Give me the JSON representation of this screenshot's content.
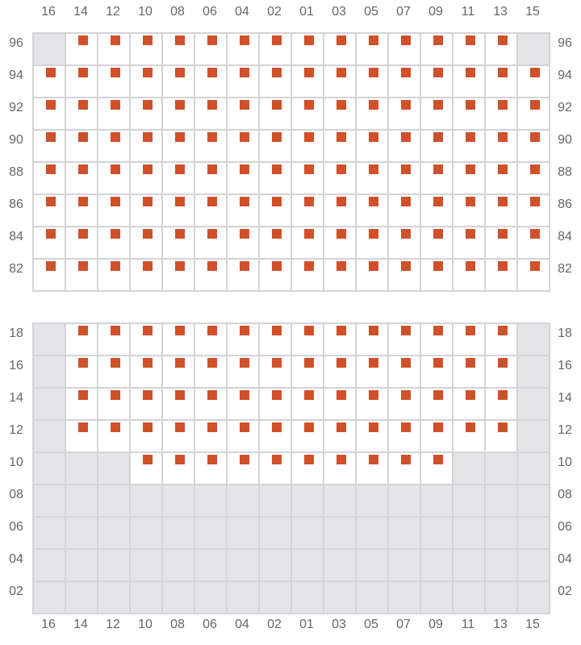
{
  "colors": {
    "seat": "#d0502a",
    "unavailable": "#e4e4e7",
    "grid": "#d4d4d8"
  },
  "columns": [
    "16",
    "14",
    "12",
    "10",
    "08",
    "06",
    "04",
    "02",
    "01",
    "03",
    "05",
    "07",
    "09",
    "11",
    "13",
    "15"
  ],
  "sections": [
    {
      "rows": [
        {
          "label": "96",
          "seats": [
            "14",
            "12",
            "10",
            "08",
            "06",
            "04",
            "02",
            "01",
            "03",
            "05",
            "07",
            "09",
            "11",
            "13"
          ],
          "unavailable": [
            "16",
            "15"
          ]
        },
        {
          "label": "94",
          "seats": [
            "16",
            "14",
            "12",
            "10",
            "08",
            "06",
            "04",
            "02",
            "01",
            "03",
            "05",
            "07",
            "09",
            "11",
            "13",
            "15"
          ],
          "unavailable": []
        },
        {
          "label": "92",
          "seats": [
            "16",
            "14",
            "12",
            "10",
            "08",
            "06",
            "04",
            "02",
            "01",
            "03",
            "05",
            "07",
            "09",
            "11",
            "13",
            "15"
          ],
          "unavailable": []
        },
        {
          "label": "90",
          "seats": [
            "16",
            "14",
            "12",
            "10",
            "08",
            "06",
            "04",
            "02",
            "01",
            "03",
            "05",
            "07",
            "09",
            "11",
            "13",
            "15"
          ],
          "unavailable": []
        },
        {
          "label": "88",
          "seats": [
            "16",
            "14",
            "12",
            "10",
            "08",
            "06",
            "04",
            "02",
            "01",
            "03",
            "05",
            "07",
            "09",
            "11",
            "13",
            "15"
          ],
          "unavailable": []
        },
        {
          "label": "86",
          "seats": [
            "16",
            "14",
            "12",
            "10",
            "08",
            "06",
            "04",
            "02",
            "01",
            "03",
            "05",
            "07",
            "09",
            "11",
            "13",
            "15"
          ],
          "unavailable": []
        },
        {
          "label": "84",
          "seats": [
            "16",
            "14",
            "12",
            "10",
            "08",
            "06",
            "04",
            "02",
            "01",
            "03",
            "05",
            "07",
            "09",
            "11",
            "13",
            "15"
          ],
          "unavailable": []
        },
        {
          "label": "82",
          "seats": [
            "16",
            "14",
            "12",
            "10",
            "08",
            "06",
            "04",
            "02",
            "01",
            "03",
            "05",
            "07",
            "09",
            "11",
            "13",
            "15"
          ],
          "unavailable": []
        }
      ]
    },
    {
      "rows": [
        {
          "label": "18",
          "seats": [
            "14",
            "12",
            "10",
            "08",
            "06",
            "04",
            "02",
            "01",
            "03",
            "05",
            "07",
            "09",
            "11",
            "13"
          ],
          "unavailable": [
            "16",
            "15"
          ]
        },
        {
          "label": "16",
          "seats": [
            "14",
            "12",
            "10",
            "08",
            "06",
            "04",
            "02",
            "01",
            "03",
            "05",
            "07",
            "09",
            "11",
            "13"
          ],
          "unavailable": [
            "16",
            "15"
          ]
        },
        {
          "label": "14",
          "seats": [
            "14",
            "12",
            "10",
            "08",
            "06",
            "04",
            "02",
            "01",
            "03",
            "05",
            "07",
            "09",
            "11",
            "13"
          ],
          "unavailable": [
            "16",
            "15"
          ]
        },
        {
          "label": "12",
          "seats": [
            "14",
            "12",
            "10",
            "08",
            "06",
            "04",
            "02",
            "01",
            "03",
            "05",
            "07",
            "09",
            "11",
            "13"
          ],
          "unavailable": [
            "16",
            "15"
          ]
        },
        {
          "label": "10",
          "seats": [
            "10",
            "08",
            "06",
            "04",
            "02",
            "01",
            "03",
            "05",
            "07",
            "09"
          ],
          "unavailable": [
            "16",
            "14",
            "12",
            "11",
            "13",
            "15"
          ]
        },
        {
          "label": "08",
          "seats": [],
          "unavailable": [
            "all"
          ]
        },
        {
          "label": "06",
          "seats": [],
          "unavailable": [
            "all"
          ]
        },
        {
          "label": "04",
          "seats": [],
          "unavailable": [
            "all"
          ]
        },
        {
          "label": "02",
          "seats": [],
          "unavailable": [
            "all"
          ]
        }
      ]
    }
  ]
}
